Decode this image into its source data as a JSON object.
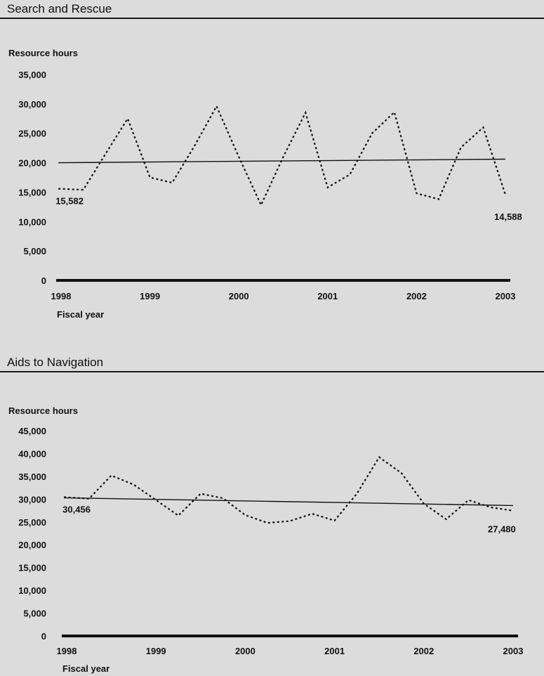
{
  "chart_data": [
    {
      "type": "line",
      "title": "Search and Rescue",
      "ylabel": "Resource hours",
      "xlabel": "Fiscal year",
      "ylim": [
        0,
        35000
      ],
      "yticks": [
        "35,000",
        "30,000",
        "25,000",
        "20,000",
        "15,000",
        "10,000",
        "5,000",
        "0"
      ],
      "ytick_values": [
        35000,
        30000,
        25000,
        20000,
        15000,
        10000,
        5000,
        0
      ],
      "xticks": [
        "1998",
        "1999",
        "2000",
        "2001",
        "2002",
        "2003"
      ],
      "xtick_values": [
        1998,
        1999,
        2000,
        2001,
        2002,
        2003
      ],
      "grid": false,
      "series": [
        {
          "style": "dotted",
          "x": [
            1997.97,
            1998.25,
            1998.5,
            1998.75,
            1999.0,
            1999.25,
            1999.5,
            1999.75,
            2000.0,
            2000.25,
            2000.5,
            2000.75,
            2001.0,
            2001.25,
            2001.5,
            2001.75,
            2002.0,
            2002.25,
            2002.5,
            2002.75,
            2003.0
          ],
          "values": [
            15582,
            15400,
            21500,
            27500,
            17500,
            16600,
            22800,
            29600,
            21000,
            12800,
            21000,
            28500,
            15800,
            18000,
            25000,
            28600,
            14800,
            13800,
            22600,
            26000,
            14588
          ]
        },
        {
          "style": "solid",
          "x": [
            1997.97,
            2003.0
          ],
          "values": [
            20000,
            20600
          ]
        }
      ],
      "annotations": [
        {
          "text": "15,582",
          "x": 1997.97,
          "y": 15582
        },
        {
          "text": "14,588",
          "x": 2003.0,
          "y": 14588
        }
      ]
    },
    {
      "type": "line",
      "title": "Aids to Navigation",
      "ylabel": "Resource hours",
      "xlabel": "Fiscal year",
      "ylim": [
        0,
        45000
      ],
      "yticks": [
        "45,000",
        "40,000",
        "35,000",
        "30,000",
        "25,000",
        "20,000",
        "15,000",
        "10,000",
        "5,000",
        "0"
      ],
      "ytick_values": [
        45000,
        40000,
        35000,
        30000,
        25000,
        20000,
        15000,
        10000,
        5000,
        0
      ],
      "xticks": [
        "1998",
        "1999",
        "2000",
        "2001",
        "2002",
        "2003"
      ],
      "xtick_values": [
        1998,
        1999,
        2000,
        2001,
        2002,
        2003
      ],
      "grid": false,
      "series": [
        {
          "style": "dotted",
          "x": [
            1997.97,
            1998.25,
            1998.5,
            1998.75,
            1999.0,
            1999.25,
            1999.5,
            1999.75,
            2000.0,
            2000.25,
            2000.5,
            2000.75,
            2001.0,
            2001.25,
            2001.5,
            2001.75,
            2002.0,
            2002.25,
            2002.5,
            2002.75,
            2003.0
          ],
          "values": [
            30456,
            30100,
            35200,
            33200,
            29800,
            26400,
            31200,
            30200,
            26500,
            24800,
            25200,
            26800,
            25300,
            31200,
            39200,
            35700,
            29000,
            25600,
            29800,
            28200,
            27480
          ]
        },
        {
          "style": "solid",
          "x": [
            1997.97,
            2003.0
          ],
          "values": [
            30300,
            28600
          ]
        }
      ],
      "annotations": [
        {
          "text": "30,456",
          "x": 1997.97,
          "y": 30456
        },
        {
          "text": "27,480",
          "x": 2003.0,
          "y": 27480
        }
      ]
    }
  ]
}
